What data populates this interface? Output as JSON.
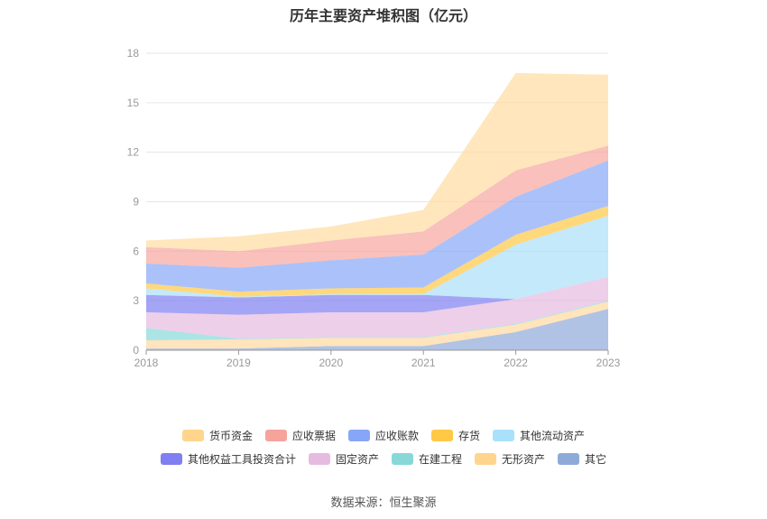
{
  "title": "历年主要资产堆积图（亿元）",
  "source": "数据来源：恒生聚源",
  "chart_data": {
    "type": "area",
    "stacked": true,
    "categories": [
      "2018",
      "2019",
      "2020",
      "2021",
      "2022",
      "2023"
    ],
    "ylim": [
      0,
      18
    ],
    "yticks": [
      0,
      3,
      6,
      9,
      12,
      15,
      18
    ],
    "grid": true,
    "legend_position": "bottom",
    "series": [
      {
        "name": "其它",
        "color": "#8EAAD8",
        "values": [
          0.1,
          0.1,
          0.25,
          0.25,
          1.1,
          2.5
        ]
      },
      {
        "name": "无形资产",
        "color": "#FFD9A0",
        "values": [
          0.5,
          0.55,
          0.5,
          0.5,
          0.45,
          0.45
        ]
      },
      {
        "name": "在建工程",
        "color": "#88D8D8",
        "values": [
          0.75,
          0.05,
          0.05,
          0.05,
          0.05,
          0.05
        ]
      },
      {
        "name": "固定资产",
        "color": "#E6BBE0",
        "values": [
          0.95,
          1.45,
          1.5,
          1.5,
          1.5,
          1.45
        ]
      },
      {
        "name": "其他权益工具投资合计",
        "color": "#7F7FF2",
        "values": [
          1.05,
          1.05,
          1.05,
          1.05,
          0.0,
          0.0
        ]
      },
      {
        "name": "其他流动资产",
        "color": "#A9E0FA",
        "values": [
          0.4,
          0.05,
          0.05,
          0.05,
          3.3,
          3.7
        ]
      },
      {
        "name": "存货",
        "color": "#FFC845",
        "values": [
          0.3,
          0.3,
          0.35,
          0.4,
          0.6,
          0.6
        ]
      },
      {
        "name": "应收账款",
        "color": "#88A6F7",
        "values": [
          1.2,
          1.45,
          1.7,
          2.0,
          2.3,
          2.75
        ]
      },
      {
        "name": "应收票据",
        "color": "#F6A5A0",
        "values": [
          1.0,
          1.0,
          1.2,
          1.4,
          1.6,
          0.9
        ]
      },
      {
        "name": "货币资金",
        "color": "#FFDCA0",
        "values": [
          0.4,
          0.9,
          0.85,
          1.3,
          5.9,
          4.3
        ]
      }
    ]
  },
  "legend_rows": [
    [
      {
        "name": "货币资金",
        "color": "#FFD58E"
      },
      {
        "name": "应收票据",
        "color": "#F6A39B"
      },
      {
        "name": "应收账款",
        "color": "#88A6F7"
      },
      {
        "name": "存货",
        "color": "#FFC845"
      },
      {
        "name": "其他流动资产",
        "color": "#A9E0FA"
      }
    ],
    [
      {
        "name": "其他权益工具投资合计",
        "color": "#7F7FF2"
      },
      {
        "name": "固定资产",
        "color": "#E6BBE0"
      },
      {
        "name": "在建工程",
        "color": "#88D8D8"
      },
      {
        "name": "无形资产",
        "color": "#FFD58E"
      },
      {
        "name": "其它",
        "color": "#8EAAD8"
      }
    ]
  ]
}
